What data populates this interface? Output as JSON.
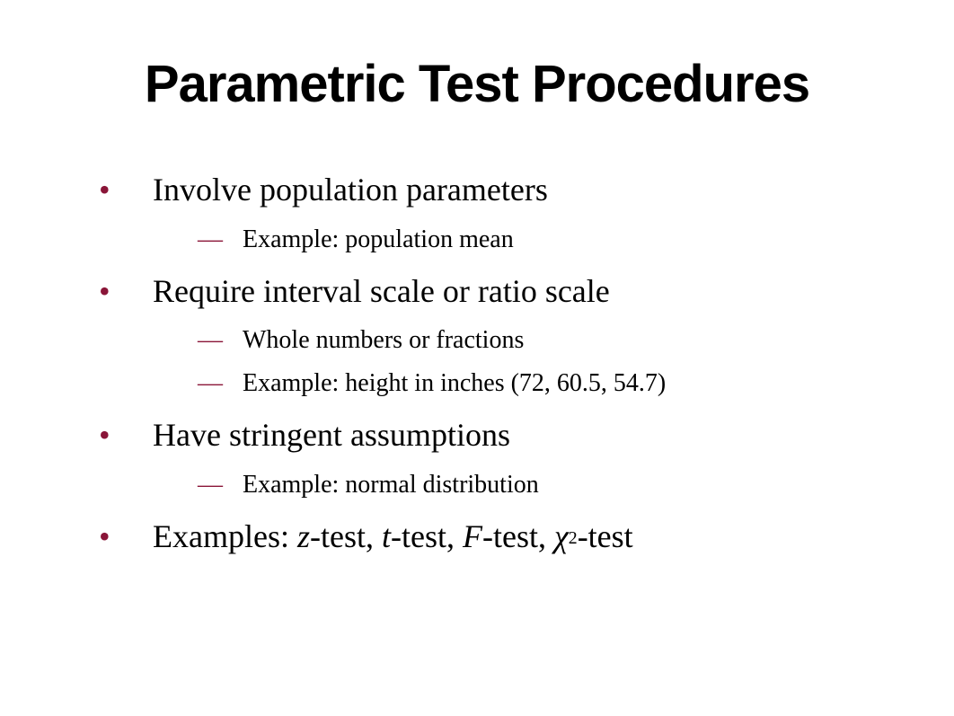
{
  "slide": {
    "title": "Parametric Test Procedures",
    "title_font": "Arial",
    "title_fontsize": 58,
    "title_weight": "bold",
    "body_font": "Georgia",
    "body_fontsize": 36,
    "sub_fontsize": 28,
    "bullet_color": "#8a1538",
    "text_color": "#000000",
    "background_color": "#ffffff",
    "items": [
      {
        "text": "Involve population parameters",
        "sub": [
          "Example: population mean"
        ]
      },
      {
        "text": "Require interval scale or ratio scale",
        "sub": [
          "Whole numbers or fractions",
          "Example: height in inches (72, 60.5, 54.7)"
        ]
      },
      {
        "text": "Have stringent assumptions",
        "sub": [
          "Example: normal distribution"
        ]
      },
      {
        "text_prefix": "Examples: ",
        "tests": [
          {
            "symbol": "z",
            "italic": true,
            "suffix": "-test, "
          },
          {
            "symbol": "t",
            "italic": true,
            "suffix": "-test, "
          },
          {
            "symbol": "F",
            "italic": true,
            "suffix": "-test, "
          },
          {
            "symbol": "χ",
            "italic": true,
            "sup": "2",
            "suffix": "-test"
          }
        ],
        "sub": []
      }
    ]
  }
}
